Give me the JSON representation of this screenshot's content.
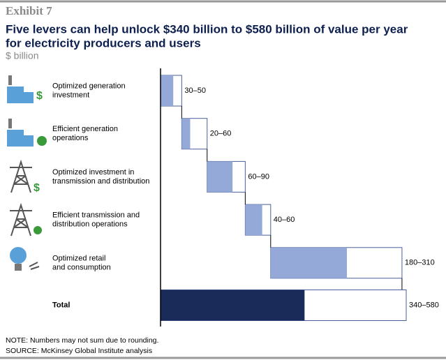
{
  "exhibit": "Exhibit 7",
  "note": "NOTE: Numbers may not sum due to rounding.",
  "source": "SOURCE: McKinsey Global Institute analysis",
  "chart_data": {
    "type": "range-waterfall",
    "title": [
      "Five levers can help unlock $340 billion to $580 billion of value per year",
      "for electricity producers and users"
    ],
    "unit": "$ billion",
    "categories": [
      "Optimized generation\ninvestment",
      "Efficient generation\noperations",
      "Optimized investment in\ntransmission and distribution",
      "Efficient transmission and\ndistribution operations",
      "Optimized retail\nand consumption"
    ],
    "low": [
      30,
      20,
      60,
      40,
      180
    ],
    "high": [
      50,
      60,
      90,
      60,
      310
    ],
    "value_labels": [
      "30–50",
      "20–60",
      "60–90",
      "40–60",
      "180–310"
    ],
    "total": {
      "label": "Total",
      "low": 340,
      "high": 580,
      "value_label": "340–580"
    },
    "color": "#94a9d8",
    "total_color": "#1a2b5a",
    "outline_color": "#4a5f9a",
    "xlim": [
      0,
      580
    ]
  }
}
